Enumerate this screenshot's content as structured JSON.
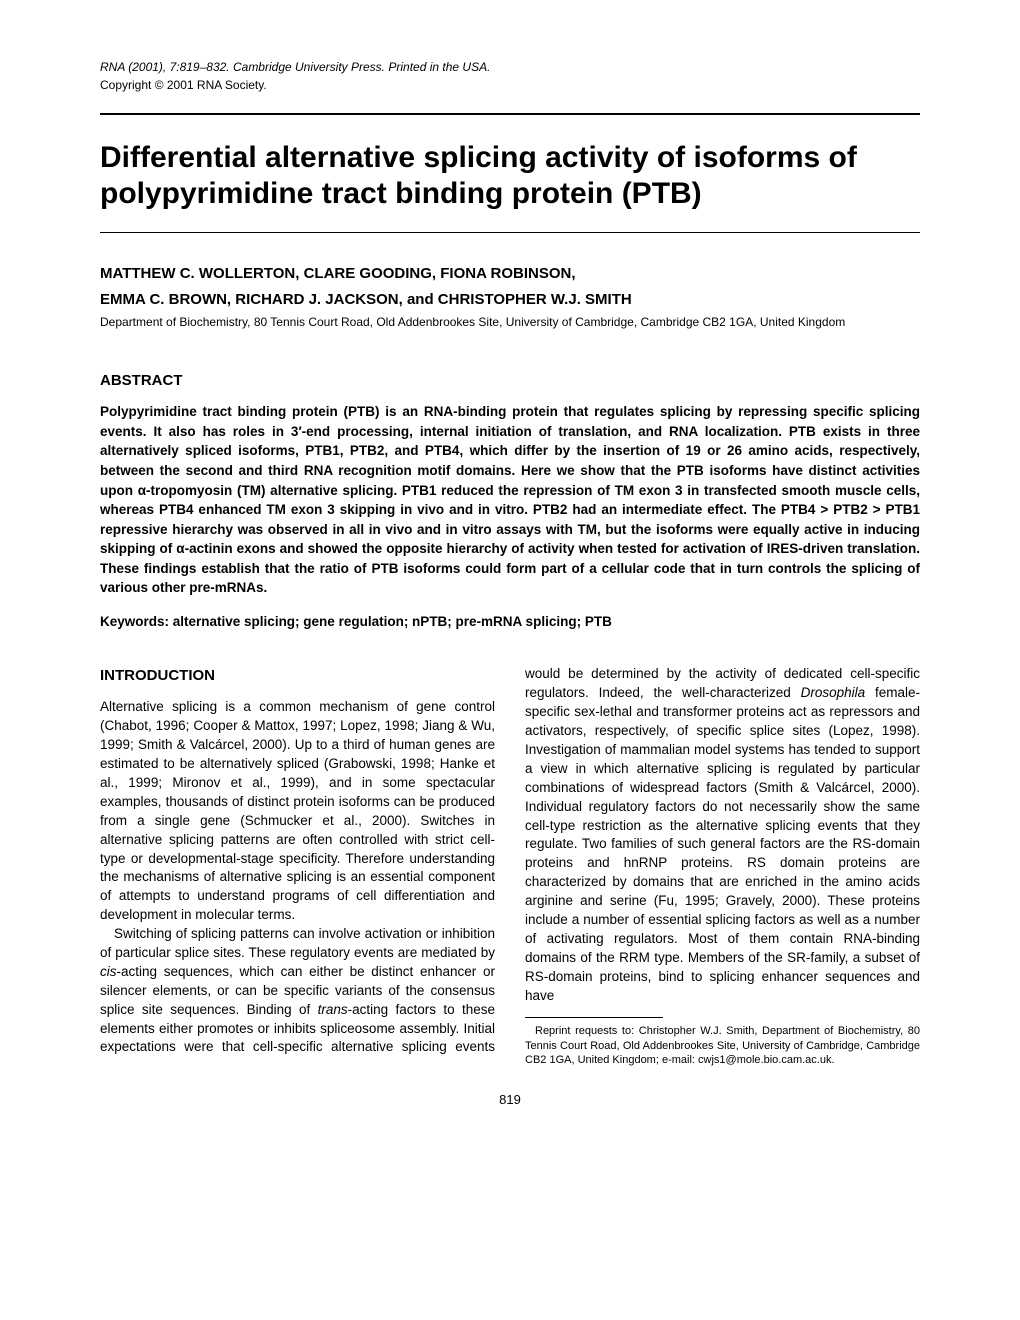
{
  "header": {
    "journal_line": "RNA (2001), 7:819–832. Cambridge University Press. Printed in the USA.",
    "copyright": "Copyright © 2001 RNA Society."
  },
  "title": "Differential alternative splicing activity of isoforms of polypyrimidine tract binding protein (PTB)",
  "authors_line1": "MATTHEW C. WOLLERTON, CLARE GOODING, FIONA ROBINSON,",
  "authors_line2": "EMMA C. BROWN, RICHARD J. JACKSON, and CHRISTOPHER W.J. SMITH",
  "affiliation": "Department of Biochemistry, 80 Tennis Court Road, Old Addenbrookes Site, University of Cambridge, Cambridge CB2 1GA, United Kingdom",
  "abstract": {
    "heading": "ABSTRACT",
    "body": "Polypyrimidine tract binding protein (PTB) is an RNA-binding protein that regulates splicing by repressing specific splicing events. It also has roles in 3′-end processing, internal initiation of translation, and RNA localization. PTB exists in three alternatively spliced isoforms, PTB1, PTB2, and PTB4, which differ by the insertion of 19 or 26 amino acids, respectively, between the second and third RNA recognition motif domains. Here we show that the PTB isoforms have distinct activities upon α-tropomyosin (TM) alternative splicing. PTB1 reduced the repression of TM exon 3 in transfected smooth muscle cells, whereas PTB4 enhanced TM exon 3 skipping in vivo and in vitro. PTB2 had an intermediate effect. The PTB4 > PTB2 > PTB1 repressive hierarchy was observed in all in vivo and in vitro assays with TM, but the isoforms were equally active in inducing skipping of α-actinin exons and showed the opposite hierarchy of activity when tested for activation of IRES-driven translation. These findings establish that the ratio of PTB isoforms could form part of a cellular code that in turn controls the splicing of various other pre-mRNAs.",
    "keywords": "Keywords:  alternative splicing; gene regulation; nPTB; pre-mRNA splicing; PTB"
  },
  "introduction": {
    "heading": "INTRODUCTION",
    "para1": "Alternative splicing is a common mechanism of gene control (Chabot, 1996; Cooper & Mattox, 1997; Lopez, 1998; Jiang & Wu, 1999; Smith & Valcárcel, 2000). Up to a third of human genes are estimated to be alternatively spliced (Grabowski, 1998; Hanke et al., 1999; Mironov et al., 1999), and in some spectacular examples, thousands of distinct protein isoforms can be produced from a single gene (Schmucker et al., 2000). Switches in alternative splicing patterns are often controlled with strict cell-type or developmental-stage specificity. Therefore understanding the mechanisms of alternative splicing is an essential component of attempts to understand programs of cell differentiation and development in molecular terms.",
    "para2_a": "Switching of splicing patterns can involve activation or inhibition of particular splice sites. These regulatory events are mediated by ",
    "para2_cis": "cis",
    "para2_b": "-acting sequences, which can either be distinct enhancer or silencer elements, or can be specific variants of the consensus splice site sequences. Binding of ",
    "para2_trans": "trans",
    "para2_c": "-acting factors to these elements either promotes or inhibits spliceosome assembly. Initial expectations were that cell-specific alternative splicing events would be determined by the activity of dedicated cell-specific regulators. Indeed, the well-characterized ",
    "para2_dros": "Drosophila",
    "para2_d": " female-specific sex-lethal and transformer proteins act as repressors and activators, respectively, of specific splice sites (Lopez, 1998). Investigation of mammalian model systems has tended to support a view in which alternative splicing is regulated by particular combinations of widespread factors (Smith & Valcárcel, 2000). Individual regulatory factors do not necessarily show the same cell-type restriction as the alternative splicing events that they regulate. Two families of such general factors are the RS-domain proteins and hnRNP proteins. RS domain proteins are characterized by domains that are enriched in the amino acids arginine and serine (Fu, 1995; Gravely, 2000). These proteins include a number of essential splicing factors as well as a number of activating regulators. Most of them contain RNA-binding domains of the RRM type. Members of the SR-family, a subset of RS-domain proteins, bind to splicing enhancer sequences and have"
  },
  "footnote": "Reprint requests to: Christopher W.J. Smith, Department of Biochemistry, 80 Tennis Court Road, Old Addenbrookes Site, University of Cambridge, Cambridge CB2 1GA, United Kingdom; e-mail: cwjs1@mole.bio.cam.ac.uk.",
  "page_number": "819"
}
